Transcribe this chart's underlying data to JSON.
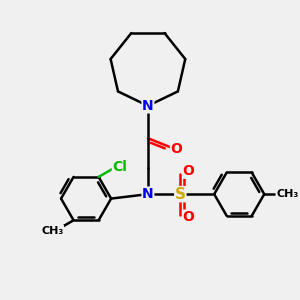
{
  "background_color": "#f0f0f0",
  "atom_colors": {
    "C": "#000000",
    "N": "#0000ee",
    "O": "#ff0000",
    "S": "#ccaa00",
    "Cl": "#00bb00"
  },
  "bond_lw": 1.8,
  "dbl_sep": 0.018,
  "fig_size": [
    3.0,
    3.0
  ],
  "dpi": 100
}
